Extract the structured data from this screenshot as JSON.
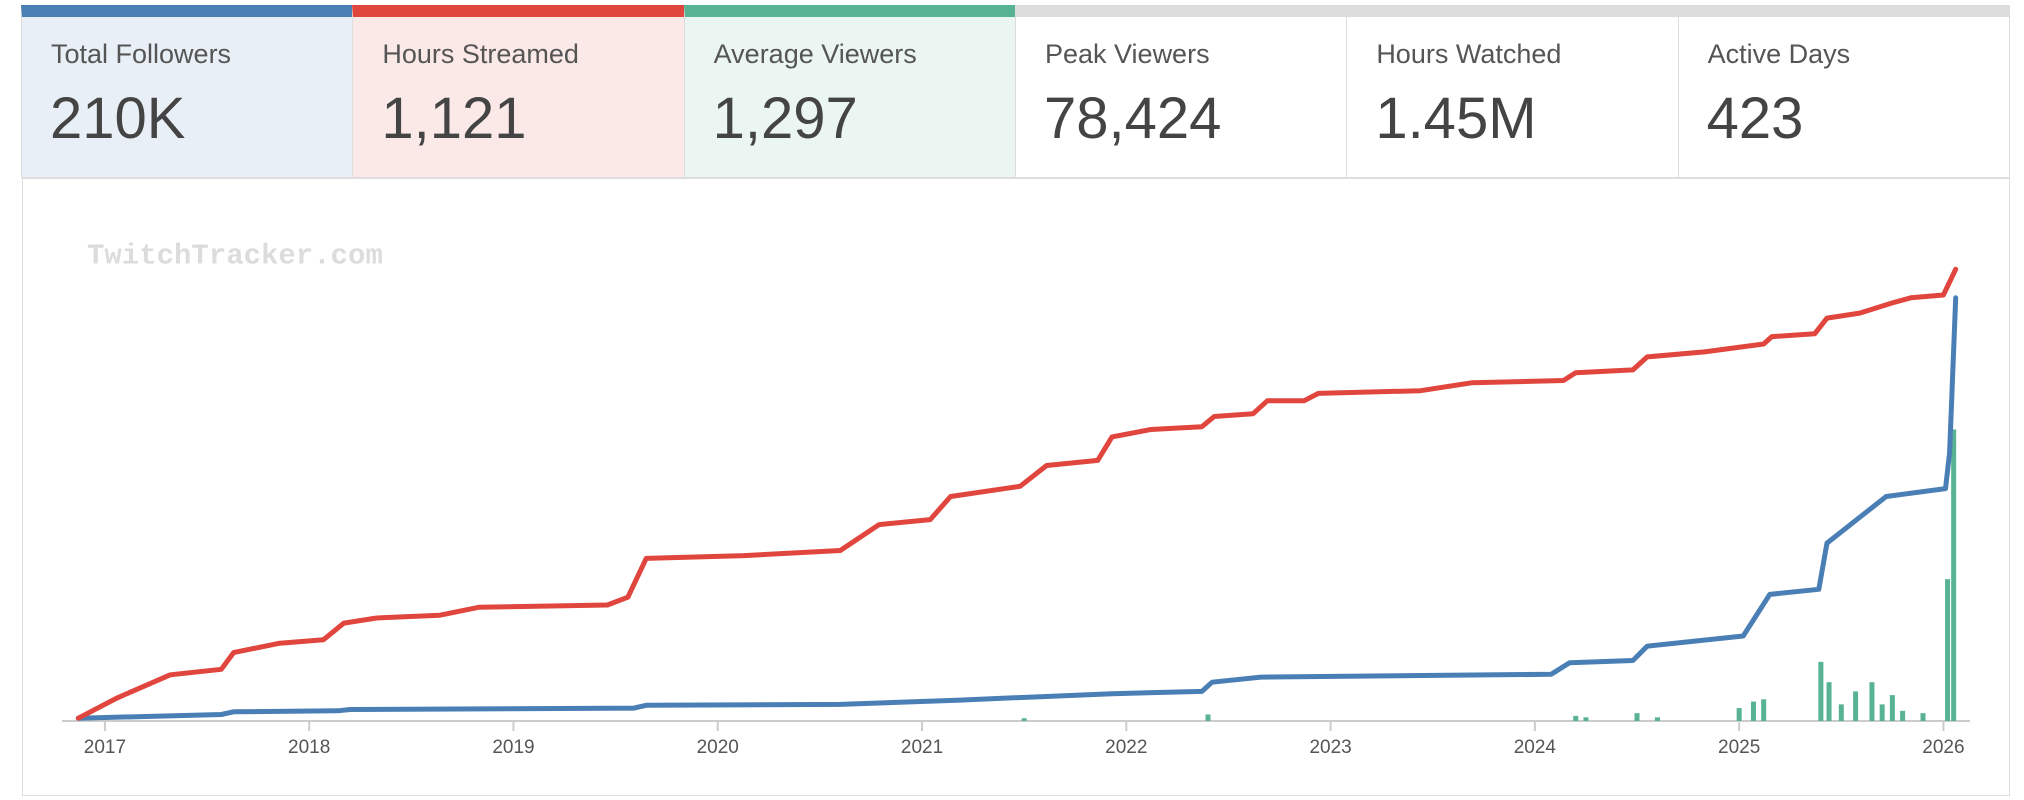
{
  "stats": [
    {
      "label": "Total Followers",
      "value": "210K",
      "color": "#4a7fb5"
    },
    {
      "label": "Hours Streamed",
      "value": "1,121",
      "color": "#e0463e"
    },
    {
      "label": "Average Viewers",
      "value": "1,297",
      "color": "#57b393"
    },
    {
      "label": "Peak Viewers",
      "value": "78,424"
    },
    {
      "label": "Hours Watched",
      "value": "1.45M"
    },
    {
      "label": "Active Days",
      "value": "423"
    }
  ],
  "chart_data": {
    "type": "line",
    "watermark": "TwitchTracker.com",
    "xlim": [
      2016.79,
      2026.13
    ],
    "xticks": [
      2017,
      2018,
      2019,
      2020,
      2021,
      2022,
      2023,
      2024,
      2025,
      2026
    ],
    "ylim": [
      0,
      100
    ],
    "series": [
      {
        "type": "line",
        "color": "#e0463e",
        "x": [
          2016.87,
          2017.06,
          2017.32,
          2017.57,
          2017.63,
          2017.85,
          2018.07,
          2018.17,
          2018.33,
          2018.64,
          2018.83,
          2019.46,
          2019.56,
          2019.65,
          2020.13,
          2020.6,
          2020.79,
          2021.04,
          2021.14,
          2021.48,
          2021.61,
          2021.86,
          2021.93,
          2022.12,
          2022.37,
          2022.43,
          2022.62,
          2022.69,
          2022.87,
          2022.94,
          2023.44,
          2023.69,
          2024.14,
          2024.2,
          2024.48,
          2024.55,
          2024.83,
          2025.12,
          2025.16,
          2025.37,
          2025.43,
          2025.59,
          2025.75,
          2025.84,
          2026.0,
          2026.06
        ],
        "values": [
          0.6,
          5,
          10,
          11.2,
          14.8,
          16.8,
          17.6,
          21.2,
          22.3,
          22.9,
          24.6,
          25.1,
          26.8,
          35.2,
          35.8,
          36.9,
          42.5,
          43.6,
          48.6,
          50.8,
          55.3,
          56.4,
          61.5,
          63.1,
          63.7,
          65.9,
          66.5,
          69.3,
          69.3,
          70.9,
          71.5,
          73.2,
          73.7,
          75.4,
          76,
          78.8,
          79.9,
          81.6,
          83.2,
          83.8,
          87.2,
          88.3,
          90.5,
          91.6,
          92.2,
          97.8
        ]
      },
      {
        "type": "line",
        "color": "#4a7fb5",
        "x": [
          2016.87,
          2017.57,
          2017.63,
          2018.14,
          2018.2,
          2019.59,
          2019.65,
          2020.6,
          2021.17,
          2021.93,
          2022.37,
          2022.42,
          2022.66,
          2024.08,
          2024.17,
          2024.48,
          2024.55,
          2025.02,
          2025.15,
          2025.39,
          2025.43,
          2025.59,
          2025.72,
          2026.01,
          2026.03,
          2026.06
        ],
        "values": [
          0.6,
          1.4,
          2,
          2.2,
          2.5,
          2.8,
          3.4,
          3.6,
          4.5,
          5.9,
          6.4,
          8.4,
          9.5,
          10.1,
          12.6,
          13.1,
          16.2,
          18.4,
          27.4,
          28.5,
          38.5,
          44.1,
          48.6,
          50.3,
          58.1,
          91.6
        ]
      },
      {
        "type": "bar",
        "color": "#57b393",
        "x": [
          2021.5,
          2022.4,
          2024.2,
          2024.25,
          2024.5,
          2024.6,
          2025.0,
          2025.07,
          2025.12,
          2025.4,
          2025.44,
          2025.5,
          2025.57,
          2025.65,
          2025.7,
          2025.75,
          2025.8,
          2025.9,
          2026.02,
          2026.05
        ],
        "values": [
          0.6,
          1.4,
          1.1,
          0.8,
          1.7,
          0.8,
          2.8,
          4.2,
          4.7,
          12.8,
          8.4,
          3.6,
          6.4,
          8.4,
          3.6,
          5.6,
          2.2,
          1.7,
          30.7,
          63.1
        ]
      }
    ]
  }
}
